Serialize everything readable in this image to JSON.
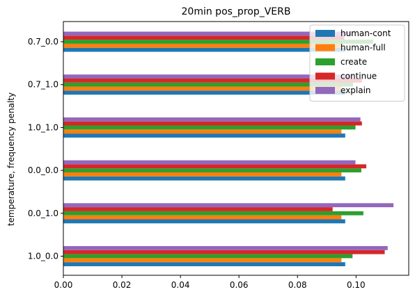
{
  "chart_data": {
    "type": "bar",
    "orientation": "horizontal",
    "title": "20min pos_prop_VERB",
    "xlabel": "",
    "ylabel": "temperature, frequency penalty",
    "categories": [
      "1.0_0.0",
      "0.0_1.0",
      "0.0_0.0",
      "1.0_1.0",
      "0.7_1.0",
      "0.7_0.0"
    ],
    "xlim": [
      0,
      0.118
    ],
    "xticks": [
      "0.00",
      "0.02",
      "0.04",
      "0.06",
      "0.08",
      "0.10"
    ],
    "xtick_values": [
      0,
      0.02,
      0.04,
      0.06,
      0.08,
      0.1
    ],
    "grid": false,
    "legend_position": "top-right",
    "series": [
      {
        "name": "human-cont",
        "color": "#1f77b4",
        "values": [
          0.0963,
          0.0963,
          0.0963,
          0.0963,
          0.0963,
          0.0963
        ]
      },
      {
        "name": "human-full",
        "color": "#ff7f0e",
        "values": [
          0.095,
          0.095,
          0.095,
          0.095,
          0.095,
          0.095
        ]
      },
      {
        "name": "create",
        "color": "#2ca02c",
        "values": [
          0.0988,
          0.1025,
          0.1018,
          0.0998,
          0.099,
          0.1058
        ]
      },
      {
        "name": "continue",
        "color": "#d62728",
        "values": [
          0.1098,
          0.092,
          0.1035,
          0.102,
          0.102,
          0.096
        ]
      },
      {
        "name": "explain",
        "color": "#9467bd",
        "values": [
          0.1108,
          0.1128,
          0.0998,
          0.1015,
          0.099,
          0.099
        ]
      }
    ]
  }
}
